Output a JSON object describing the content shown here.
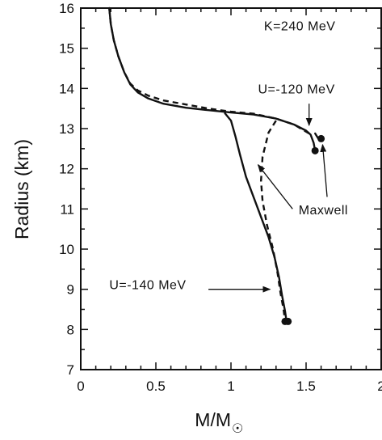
{
  "chart_data": {
    "type": "line",
    "title": "",
    "xlabel": "M/M",
    "xlabel_symbol": "☉",
    "ylabel": "Radius (km)",
    "xlim": [
      0,
      2
    ],
    "ylim": [
      7,
      16
    ],
    "x_ticks": [
      "0",
      "0.5",
      "1",
      "1.5",
      "2"
    ],
    "y_ticks": [
      "7",
      "8",
      "9",
      "10",
      "11",
      "12",
      "13",
      "14",
      "15",
      "16"
    ],
    "grid": false,
    "legend": "none",
    "series": [
      {
        "style": "solid",
        "points": [
          [
            0.19,
            16.0
          ],
          [
            0.2,
            15.6
          ],
          [
            0.22,
            15.2
          ],
          [
            0.25,
            14.8
          ],
          [
            0.29,
            14.4
          ],
          [
            0.33,
            14.1
          ],
          [
            0.38,
            13.9
          ],
          [
            0.45,
            13.75
          ],
          [
            0.55,
            13.62
          ],
          [
            0.7,
            13.52
          ],
          [
            0.85,
            13.46
          ],
          [
            1.0,
            13.4
          ],
          [
            1.15,
            13.35
          ],
          [
            1.3,
            13.25
          ],
          [
            1.42,
            13.1
          ],
          [
            1.5,
            12.95
          ],
          [
            1.53,
            12.85
          ],
          [
            1.55,
            12.65
          ],
          [
            1.56,
            12.45
          ]
        ]
      },
      {
        "style": "solid",
        "points": [
          [
            1.6,
            12.75
          ],
          [
            1.59,
            12.7
          ],
          [
            1.56,
            12.88
          ]
        ]
      },
      {
        "style": "dashed",
        "points": [
          [
            0.19,
            16.0
          ],
          [
            0.2,
            15.6
          ],
          [
            0.22,
            15.2
          ],
          [
            0.25,
            14.8
          ],
          [
            0.29,
            14.4
          ],
          [
            0.33,
            14.12
          ],
          [
            0.38,
            13.95
          ],
          [
            0.45,
            13.82
          ],
          [
            0.55,
            13.7
          ],
          [
            0.7,
            13.6
          ],
          [
            0.85,
            13.5
          ],
          [
            1.0,
            13.42
          ],
          [
            1.15,
            13.37
          ],
          [
            1.3,
            13.25
          ],
          [
            1.42,
            13.1
          ],
          [
            1.52,
            12.88
          ]
        ]
      },
      {
        "style": "solid",
        "points": [
          [
            0.96,
            13.38
          ],
          [
            1.0,
            13.2
          ],
          [
            1.03,
            12.8
          ],
          [
            1.06,
            12.35
          ],
          [
            1.1,
            11.8
          ],
          [
            1.15,
            11.3
          ],
          [
            1.2,
            10.8
          ],
          [
            1.25,
            10.3
          ],
          [
            1.29,
            9.8
          ],
          [
            1.32,
            9.3
          ],
          [
            1.34,
            8.85
          ],
          [
            1.36,
            8.45
          ],
          [
            1.37,
            8.2
          ]
        ]
      },
      {
        "style": "dashed",
        "points": [
          [
            1.3,
            13.2
          ],
          [
            1.25,
            12.9
          ],
          [
            1.21,
            12.3
          ],
          [
            1.2,
            11.7
          ],
          [
            1.21,
            11.2
          ],
          [
            1.24,
            10.6
          ],
          [
            1.28,
            10.0
          ],
          [
            1.31,
            9.4
          ],
          [
            1.33,
            8.9
          ],
          [
            1.35,
            8.5
          ],
          [
            1.36,
            8.2
          ]
        ]
      }
    ],
    "endpoints": [
      [
        1.56,
        12.45
      ],
      [
        1.6,
        12.75
      ],
      [
        1.36,
        8.2
      ],
      [
        1.38,
        8.2
      ]
    ],
    "annotations": [
      {
        "text": "K=240 MeV",
        "x": 1.22,
        "y": 15.45
      },
      {
        "text": "U=-120 MeV",
        "x": 1.18,
        "y": 13.88,
        "arrow_from": [
          1.52,
          13.62
        ],
        "arrow_to": [
          1.52,
          13.08
        ]
      },
      {
        "text": "Maxwell",
        "x": 1.45,
        "y": 10.87,
        "arrow_from": [
          1.41,
          11.0
        ],
        "arrow_to": [
          1.18,
          12.1
        ]
      },
      {
        "text": "U=-140 MeV",
        "x": 0.19,
        "y": 9.0,
        "arrow_from": [
          0.85,
          9.0
        ],
        "arrow_to": [
          1.26,
          9.0
        ]
      },
      {
        "text": "",
        "arrow_from": [
          1.64,
          11.3
        ],
        "arrow_to": [
          1.61,
          12.6
        ]
      }
    ]
  }
}
